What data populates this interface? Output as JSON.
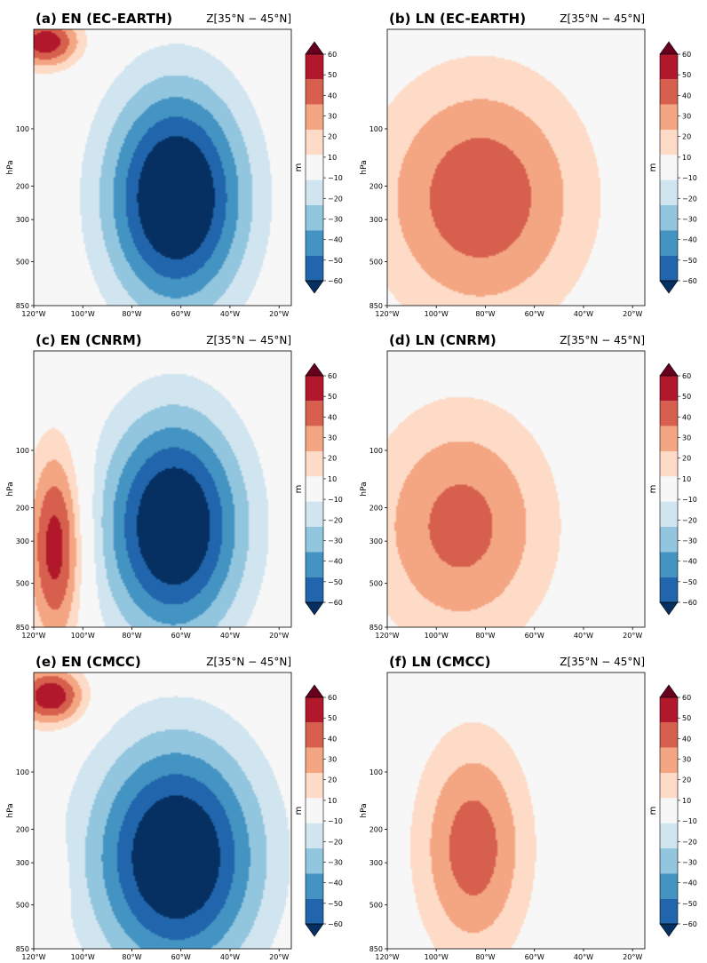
{
  "chart_data": {
    "type": "heatmap",
    "variable_label": "Z[35°N − 45°N]",
    "x_ticks": [
      "120°W",
      "100°W",
      "80°W",
      "60°W",
      "40°W",
      "20°W"
    ],
    "x_tick_values": [
      -120,
      -100,
      -80,
      -60,
      -40,
      -20
    ],
    "x_range": [
      -120,
      -15
    ],
    "y_label": "hPa",
    "y_ticks": [
      "100",
      "200",
      "300",
      "500",
      "850"
    ],
    "y_tick_values": [
      100,
      200,
      300,
      500,
      850
    ],
    "y_range": [
      30,
      850
    ],
    "y_scale": "log",
    "y_inverted": true,
    "colorbar": {
      "label": "m",
      "levels": [
        -60,
        -50,
        -40,
        -30,
        -20,
        -10,
        10,
        20,
        30,
        40,
        50,
        60
      ],
      "tick_labels": [
        "60",
        "50",
        "40",
        "30",
        "20",
        "10",
        "−10",
        "−20",
        "−30",
        "−40",
        "−50",
        "−60"
      ],
      "colors": [
        "#67001f",
        "#b2182b",
        "#d6604d",
        "#f4a582",
        "#fddbc7",
        "#f7f7f7",
        "#d1e5f0",
        "#92c5de",
        "#4393c3",
        "#2166ac",
        "#053061"
      ],
      "extend": "both"
    },
    "panels": [
      {
        "title": "(a) EN (EC-EARTH)",
        "features": [
          {
            "sign": "neg",
            "amp": -68,
            "x": -62,
            "xs": 20,
            "p": 230,
            "ps": 0.95
          },
          {
            "sign": "pos",
            "amp": 48,
            "x": -115,
            "xs": 10,
            "p": 35,
            "ps": 0.22
          },
          {
            "sign": "pos",
            "amp": 14,
            "x": -108,
            "xs": 2.5,
            "p": 380,
            "ps": 0.25
          }
        ]
      },
      {
        "title": "(b) LN (EC-EARTH)",
        "features": [
          {
            "sign": "pos",
            "amp": 38,
            "x": -82,
            "xs": 30,
            "p": 230,
            "ps": 1.05
          }
        ]
      },
      {
        "title": "(c) EN (CNRM)",
        "features": [
          {
            "sign": "neg",
            "amp": -66,
            "x": -63,
            "xs": 20,
            "p": 250,
            "ps": 0.95
          },
          {
            "sign": "pos",
            "amp": 48,
            "x": -111,
            "xs": 8,
            "p": 320,
            "ps": 0.85
          }
        ]
      },
      {
        "title": "(d) LN (CNRM)",
        "features": [
          {
            "sign": "pos",
            "amp": 34,
            "x": -90,
            "xs": 26,
            "p": 250,
            "ps": 1.0
          }
        ]
      },
      {
        "title": "(e) EN (CMCC)",
        "features": [
          {
            "sign": "neg",
            "amp": -66,
            "x": -62,
            "xs": 24,
            "p": 280,
            "ps": 1.0
          },
          {
            "sign": "pos",
            "amp": 50,
            "x": -113,
            "xs": 10,
            "p": 40,
            "ps": 0.25
          },
          {
            "sign": "pos",
            "amp": 14,
            "x": -109,
            "xs": 2,
            "p": 400,
            "ps": 0.3
          }
        ]
      },
      {
        "title": "(f) LN (CMCC)",
        "features": [
          {
            "sign": "pos",
            "amp": 36,
            "x": -85,
            "xs": 16,
            "p": 250,
            "ps": 0.95
          }
        ]
      }
    ]
  }
}
